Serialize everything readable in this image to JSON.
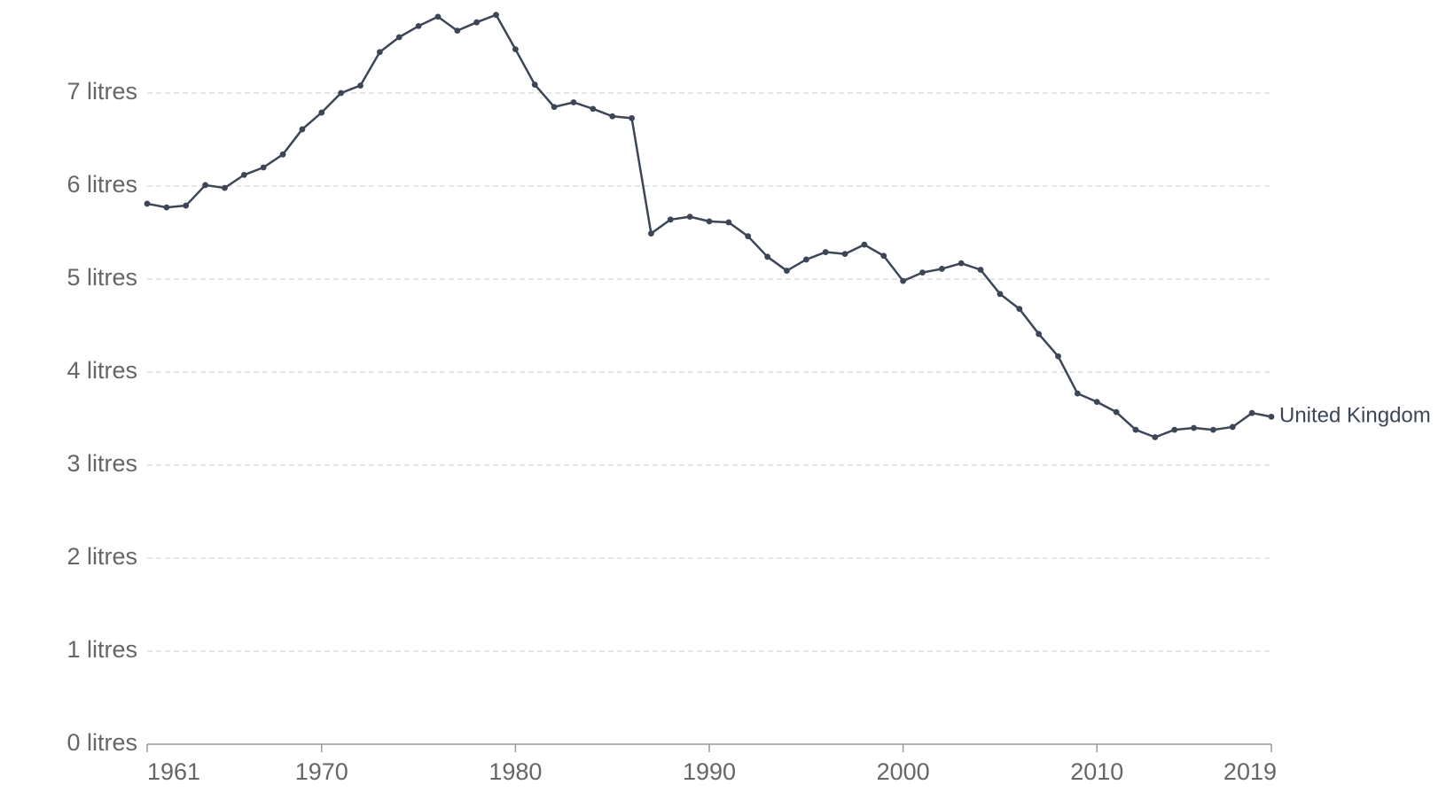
{
  "chart_data": {
    "type": "line",
    "x": [
      1961,
      1962,
      1963,
      1964,
      1965,
      1966,
      1967,
      1968,
      1969,
      1970,
      1971,
      1972,
      1973,
      1974,
      1975,
      1976,
      1977,
      1978,
      1979,
      1980,
      1981,
      1982,
      1983,
      1984,
      1985,
      1986,
      1987,
      1988,
      1989,
      1990,
      1991,
      1992,
      1993,
      1994,
      1995,
      1996,
      1997,
      1998,
      1999,
      2000,
      2001,
      2002,
      2003,
      2004,
      2005,
      2006,
      2007,
      2008,
      2009,
      2010,
      2011,
      2012,
      2013,
      2014,
      2015,
      2016,
      2017,
      2018,
      2019
    ],
    "series": [
      {
        "name": "United Kingdom",
        "color": "#3d4656",
        "values": [
          5.81,
          5.77,
          5.79,
          6.01,
          5.98,
          6.12,
          6.2,
          6.34,
          6.61,
          6.79,
          7.0,
          7.08,
          7.44,
          7.6,
          7.72,
          7.82,
          7.67,
          7.76,
          7.84,
          7.47,
          7.09,
          6.85,
          6.9,
          6.83,
          6.75,
          6.73,
          5.49,
          5.64,
          5.67,
          5.62,
          5.61,
          5.46,
          5.24,
          5.09,
          5.21,
          5.29,
          5.27,
          5.37,
          5.25,
          4.98,
          5.07,
          5.11,
          5.17,
          5.1,
          4.84,
          4.68,
          4.41,
          4.17,
          3.77,
          3.68,
          3.57,
          3.38,
          3.3,
          3.38,
          3.4,
          3.38,
          3.41,
          3.56,
          3.52
        ]
      }
    ],
    "xlim": [
      1961,
      2019
    ],
    "xticks": [
      1961,
      1970,
      1980,
      1990,
      2000,
      2010,
      2019
    ],
    "ylim": [
      0,
      8
    ],
    "yticks": [
      {
        "value": 0,
        "label": "0 litres"
      },
      {
        "value": 1,
        "label": "1 litres"
      },
      {
        "value": 2,
        "label": "2 litres"
      },
      {
        "value": 3,
        "label": "3 litres"
      },
      {
        "value": 4,
        "label": "4 litres"
      },
      {
        "value": 5,
        "label": "5 litres"
      },
      {
        "value": 6,
        "label": "6 litres"
      },
      {
        "value": 7,
        "label": "7 litres"
      }
    ],
    "grid": true
  }
}
